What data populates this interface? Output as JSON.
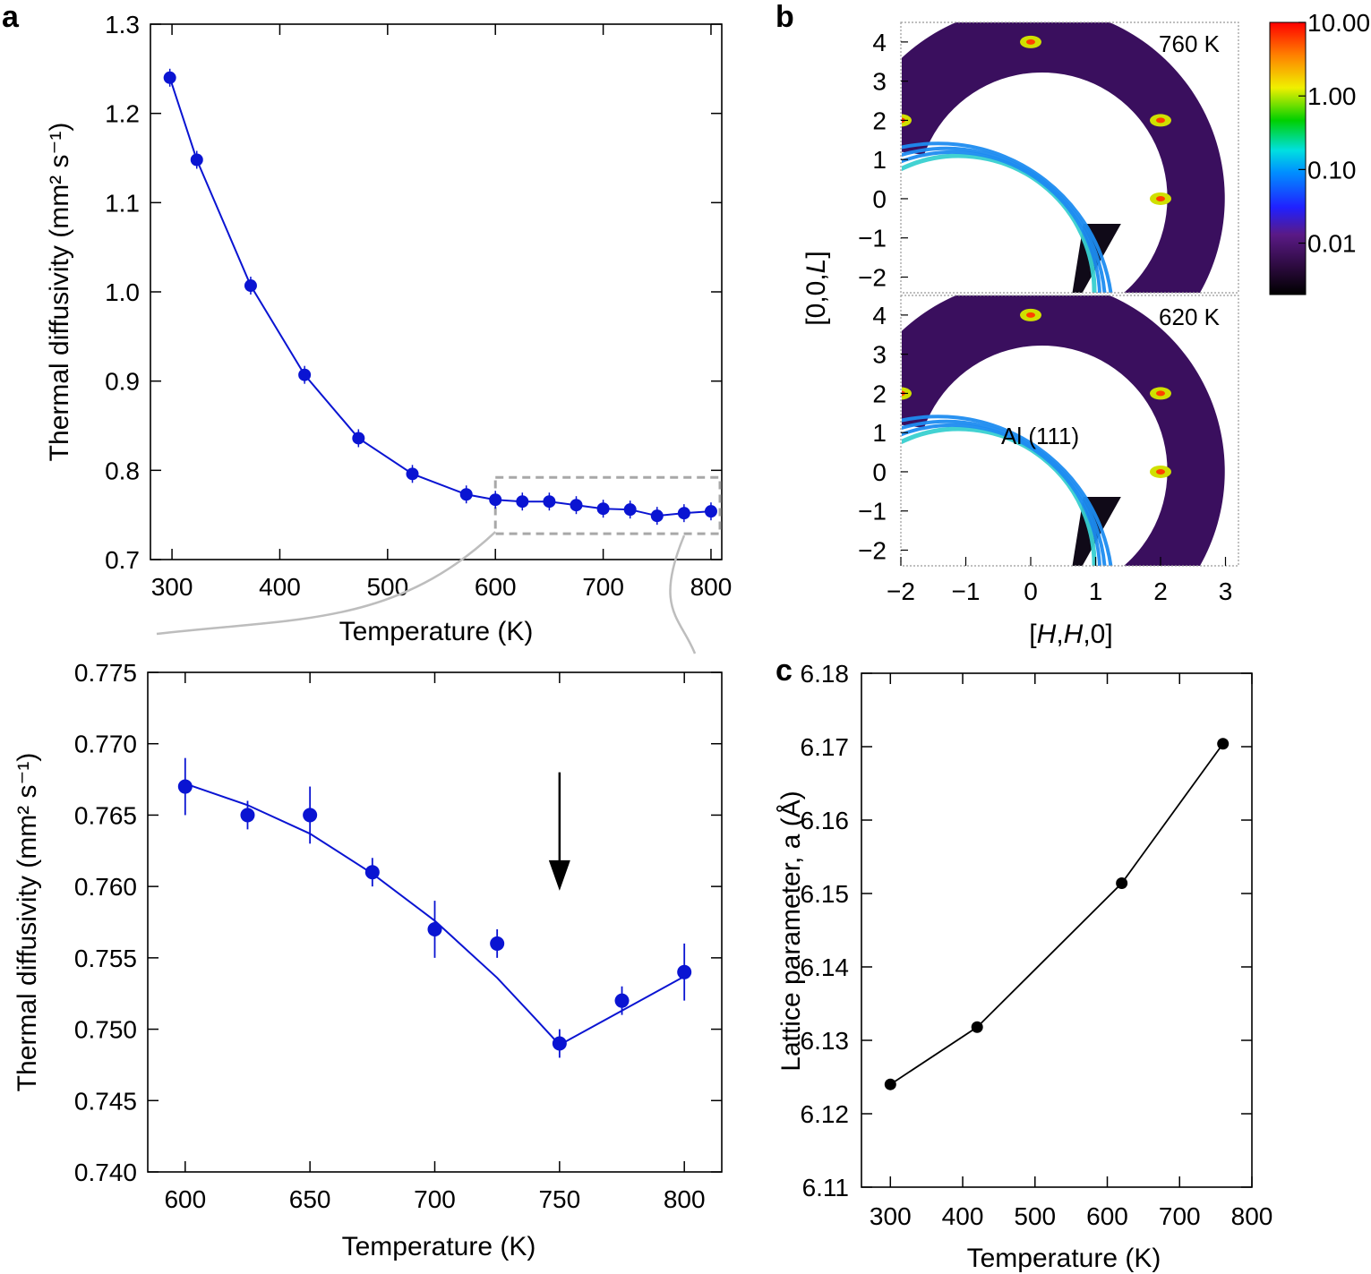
{
  "colors": {
    "series_a": "#0a14d2",
    "series_c": "#000000",
    "zoom_box": "#a8a8a8",
    "connector": "#bdbdbd"
  },
  "panel_letters": {
    "a": "a",
    "b": "b",
    "c": "c"
  },
  "chart_data": [
    {
      "id": "a_top",
      "type": "line",
      "xlabel": "Temperature (K)",
      "ylabel": "Thermal diffusivity (mm² s⁻¹)",
      "xlim": [
        280,
        810
      ],
      "ylim": [
        0.7,
        1.3
      ],
      "xticks": [
        "300",
        "400",
        "500",
        "600",
        "700",
        "800"
      ],
      "yticks": [
        "0.7",
        "0.8",
        "0.9",
        "1.0",
        "1.1",
        "1.2",
        "1.3"
      ],
      "x": [
        298,
        323,
        373,
        423,
        473,
        523,
        573,
        600,
        625,
        650,
        675,
        700,
        725,
        750,
        775,
        800
      ],
      "y": [
        1.24,
        1.148,
        1.007,
        0.907,
        0.836,
        0.796,
        0.773,
        0.767,
        0.765,
        0.765,
        0.761,
        0.757,
        0.756,
        0.749,
        0.752,
        0.754
      ],
      "zoom_box": {
        "x": [
          600,
          810
        ],
        "y": [
          0.729,
          0.792
        ]
      }
    },
    {
      "id": "a_bottom",
      "type": "scatter",
      "xlabel": "Temperature (K)",
      "ylabel": "Thermal diffusivity (mm² s⁻¹)",
      "xlim": [
        585,
        815
      ],
      "ylim": [
        0.74,
        0.775
      ],
      "xticks": [
        "600",
        "650",
        "700",
        "750",
        "800"
      ],
      "yticks": [
        "0.740",
        "0.745",
        "0.750",
        "0.755",
        "0.760",
        "0.765",
        "0.770",
        "0.775"
      ],
      "x": [
        600,
        625,
        650,
        675,
        700,
        725,
        750,
        775,
        800
      ],
      "y": [
        0.767,
        0.765,
        0.765,
        0.761,
        0.757,
        0.756,
        0.749,
        0.752,
        0.754
      ],
      "err": [
        0.002,
        0.001,
        0.002,
        0.001,
        0.002,
        0.001,
        0.001,
        0.001,
        0.002
      ],
      "fit_x": [
        600,
        625,
        650,
        675,
        700,
        725,
        740,
        750,
        775,
        800
      ],
      "fit_y": [
        0.7672,
        0.7657,
        0.7637,
        0.7609,
        0.7576,
        0.7536,
        0.7508,
        0.7489,
        0.7513,
        0.7537
      ],
      "arrow": {
        "x": 750,
        "y_from": 0.768,
        "y_to": 0.7597
      }
    },
    {
      "id": "b",
      "type": "heatmap",
      "xlabel": "[H,H,0]",
      "ylabel": "[0,0,L]",
      "xlim": [
        -2,
        3.2
      ],
      "ylim": [
        -2.4,
        4.5
      ],
      "xticks": [
        "−2",
        "−1",
        "0",
        "1",
        "2",
        "3"
      ],
      "yticks": [
        "−2",
        "−1",
        "0",
        "1",
        "2",
        "3",
        "4"
      ],
      "maps": [
        {
          "label": "760 K"
        },
        {
          "label": "620 K",
          "annotation": "Al (111)"
        }
      ],
      "colorbar": {
        "scale": "log",
        "ticks": [
          "10.00",
          "1.00",
          "0.10",
          "0.01"
        ]
      }
    },
    {
      "id": "c",
      "type": "line",
      "xlabel": "Temperature (K)",
      "ylabel": "Lattice parameter, a (Å)",
      "xlim": [
        260,
        800
      ],
      "ylim": [
        6.11,
        6.18
      ],
      "xticks": [
        "300",
        "400",
        "500",
        "600",
        "700",
        "800"
      ],
      "yticks": [
        "6.11",
        "6.12",
        "6.13",
        "6.14",
        "6.15",
        "6.16",
        "6.17",
        "6.18"
      ],
      "x": [
        300,
        420,
        620,
        760
      ],
      "y": [
        6.124,
        6.1318,
        6.1514,
        6.1704
      ]
    }
  ]
}
